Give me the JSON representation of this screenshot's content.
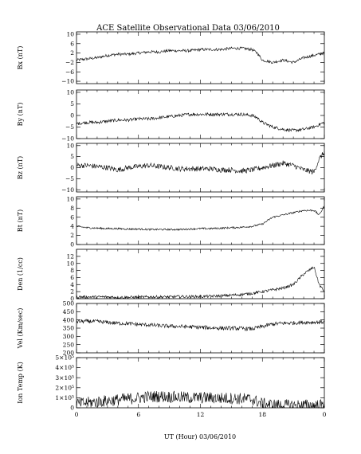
{
  "title": "ACE Satellite Observational Data   03/06/2010",
  "xlabel": "UT (Hour)   03/06/2010",
  "x_tick_labels": [
    "0",
    "6",
    "12",
    "18",
    "0"
  ],
  "chart_data": [
    {
      "type": "line",
      "ylabel": "Bx (nT)",
      "ylim": [
        -11,
        11
      ],
      "yticks": [
        {
          "value": 10,
          "label": "10"
        },
        {
          "value": 6,
          "label": "6"
        },
        {
          "value": 2,
          "label": "2"
        },
        {
          "value": -2,
          "label": "−2"
        },
        {
          "value": -6,
          "label": "−6"
        },
        {
          "value": -10,
          "label": "−10"
        }
      ],
      "x": [
        0,
        1,
        2,
        3,
        4,
        5,
        6,
        7,
        8,
        9,
        10,
        11,
        12,
        13,
        14,
        15,
        16,
        17,
        17.5,
        18,
        19,
        20,
        21,
        22,
        23,
        24
      ],
      "y": [
        -1,
        -0.5,
        0,
        1,
        1.5,
        1.5,
        2,
        2.5,
        2.5,
        3,
        3,
        3,
        3.5,
        3.5,
        3.5,
        4,
        4,
        3.5,
        2,
        -1,
        -2,
        -1,
        -2,
        0,
        1,
        2
      ],
      "noise": 0.6
    },
    {
      "type": "line",
      "ylabel": "By (nT)",
      "ylim": [
        -10,
        11
      ],
      "yticks": [
        {
          "value": 10,
          "label": "10"
        },
        {
          "value": 5,
          "label": "5"
        },
        {
          "value": 0,
          "label": "0"
        },
        {
          "value": -5,
          "label": "−5"
        },
        {
          "value": -10,
          "label": "−10"
        }
      ],
      "x": [
        0,
        1,
        2,
        3,
        4,
        5,
        6,
        7,
        8,
        9,
        10,
        11,
        12,
        13,
        14,
        15,
        16,
        17,
        17.5,
        18,
        19,
        20,
        21,
        22,
        23,
        24
      ],
      "y": [
        -3.5,
        -3,
        -3,
        -2.5,
        -2,
        -2,
        -1.5,
        -1.5,
        -1,
        -0.5,
        0,
        0.5,
        0.5,
        0.5,
        0.5,
        0.5,
        0.5,
        0,
        -1,
        -3,
        -5,
        -6,
        -6.5,
        -6,
        -5,
        -3
      ],
      "noise": 0.7
    },
    {
      "type": "line",
      "ylabel": "Bz (nT)",
      "ylim": [
        -11,
        11
      ],
      "yticks": [
        {
          "value": 10,
          "label": "10"
        },
        {
          "value": 5,
          "label": "5"
        },
        {
          "value": 0,
          "label": "0"
        },
        {
          "value": -5,
          "label": "−5"
        },
        {
          "value": -10,
          "label": "−10"
        }
      ],
      "x": [
        0,
        1,
        2,
        3,
        4,
        5,
        6,
        7,
        8,
        9,
        10,
        11,
        12,
        13,
        14,
        15,
        16,
        17,
        18,
        19,
        20,
        21,
        22,
        23,
        23.5,
        24
      ],
      "y": [
        1,
        1,
        0.5,
        0,
        -1,
        0,
        0.5,
        1,
        0.5,
        0,
        -0.5,
        -0.5,
        -0.5,
        -0.5,
        -1,
        -1,
        -1.5,
        -1,
        0,
        1,
        2,
        1,
        -1,
        -2,
        4,
        7
      ],
      "noise": 1.2
    },
    {
      "type": "line",
      "ylabel": "Bt (nT)",
      "ylim": [
        0,
        10.5
      ],
      "yticks": [
        {
          "value": 10,
          "label": "10"
        },
        {
          "value": 8,
          "label": "8"
        },
        {
          "value": 6,
          "label": "6"
        },
        {
          "value": 4,
          "label": "4"
        },
        {
          "value": 2,
          "label": "2"
        },
        {
          "value": 0,
          "label": "0"
        }
      ],
      "x": [
        0,
        1,
        2,
        3,
        4,
        5,
        6,
        7,
        8,
        9,
        10,
        11,
        12,
        13,
        14,
        15,
        16,
        17,
        18,
        19,
        20,
        21,
        22,
        23,
        23.5,
        24
      ],
      "y": [
        4,
        3.7,
        3.6,
        3.5,
        3.5,
        3.4,
        3.4,
        3.3,
        3.3,
        3.3,
        3.3,
        3.4,
        3.5,
        3.5,
        3.6,
        3.7,
        3.8,
        4,
        4.5,
        6,
        6.5,
        7,
        7.5,
        7.5,
        6.5,
        8.5
      ],
      "noise": 0.2
    },
    {
      "type": "line",
      "ylabel": "Den (1/cc)",
      "ylim": [
        0,
        14
      ],
      "yticks": [
        {
          "value": 12,
          "label": "12"
        },
        {
          "value": 10,
          "label": "10"
        },
        {
          "value": 8,
          "label": "8"
        },
        {
          "value": 6,
          "label": "6"
        },
        {
          "value": 4,
          "label": "4"
        },
        {
          "value": 2,
          "label": "2"
        },
        {
          "value": 0,
          "label": "0"
        }
      ],
      "x": [
        0,
        1,
        2,
        3,
        4,
        5,
        6,
        7,
        8,
        9,
        10,
        11,
        12,
        13,
        14,
        15,
        16,
        17,
        18,
        19,
        20,
        21,
        22,
        23,
        23.5,
        24
      ],
      "y": [
        0.5,
        0.5,
        0.5,
        0.5,
        0.4,
        0.4,
        0.4,
        0.5,
        0.5,
        0.5,
        0.6,
        0.6,
        0.6,
        0.7,
        0.8,
        1,
        1.2,
        1.5,
        2,
        2.5,
        3,
        4,
        7,
        9,
        4,
        2
      ],
      "noise": 0.4
    },
    {
      "type": "line",
      "ylabel": "Vel (Km/sec)",
      "ylim": [
        200,
        500
      ],
      "yticks": [
        {
          "value": 500,
          "label": "500"
        },
        {
          "value": 450,
          "label": "450"
        },
        {
          "value": 400,
          "label": "400"
        },
        {
          "value": 350,
          "label": "350"
        },
        {
          "value": 300,
          "label": "300"
        },
        {
          "value": 250,
          "label": "250"
        },
        {
          "value": 200,
          "label": "200"
        }
      ],
      "x": [
        0,
        1,
        2,
        3,
        4,
        5,
        6,
        7,
        8,
        9,
        10,
        11,
        12,
        13,
        14,
        15,
        16,
        17,
        18,
        19,
        20,
        21,
        22,
        23,
        24
      ],
      "y": [
        390,
        392,
        390,
        385,
        380,
        378,
        372,
        370,
        365,
        362,
        360,
        358,
        355,
        352,
        350,
        350,
        348,
        345,
        360,
        375,
        380,
        382,
        385,
        386,
        388
      ],
      "noise": 12
    },
    {
      "type": "line",
      "ylabel": "Ion Temp (K)",
      "ylim": [
        0,
        500000
      ],
      "yticks": [
        {
          "value": 500000,
          "label": "5×10⁵"
        },
        {
          "value": 400000,
          "label": "4×10⁵"
        },
        {
          "value": 300000,
          "label": "3×10⁵"
        },
        {
          "value": 200000,
          "label": "2×10⁵"
        },
        {
          "value": 100000,
          "label": "1×10⁵"
        },
        {
          "value": 0,
          "label": "0"
        }
      ],
      "x": [
        0,
        1,
        2,
        3,
        4,
        5,
        6,
        7,
        8,
        9,
        10,
        11,
        12,
        13,
        14,
        15,
        16,
        17,
        18,
        19,
        20,
        21,
        22,
        23,
        24
      ],
      "y": [
        40000,
        50000,
        60000,
        70000,
        80000,
        90000,
        100000,
        110000,
        115000,
        110000,
        105000,
        100000,
        100000,
        100000,
        95000,
        95000,
        90000,
        85000,
        40000,
        30000,
        25000,
        25000,
        25000,
        25000,
        25000
      ],
      "noise": 60000
    }
  ]
}
